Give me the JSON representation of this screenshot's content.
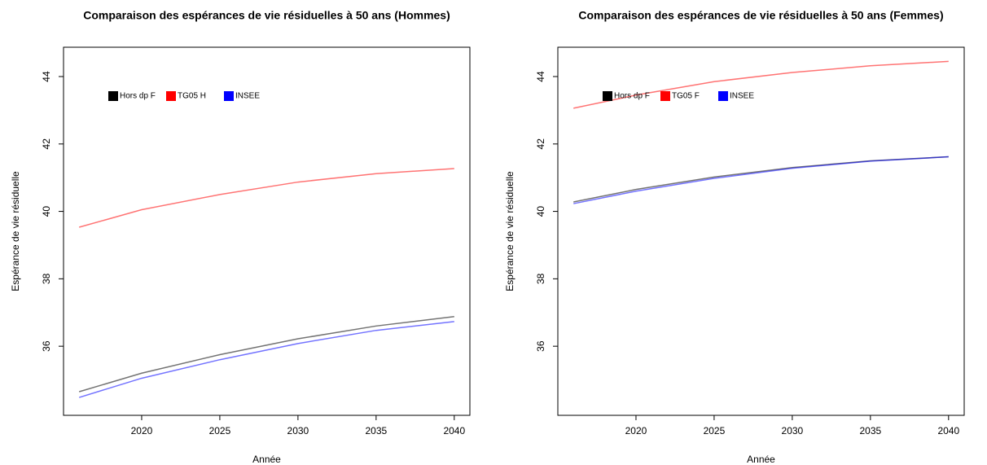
{
  "chart_data": [
    {
      "type": "line",
      "title": "Comparaison des espérances de vie résiduelles à 50 ans (Hommes)",
      "x_label": "Année",
      "y_label": "Espérance de vie résiduelle",
      "x": [
        2016,
        2020,
        2025,
        2030,
        2035,
        2040
      ],
      "series": [
        {
          "name": "Hors dp F",
          "color": "#000000",
          "values": [
            34.65,
            35.2,
            35.75,
            36.22,
            36.6,
            36.88
          ]
        },
        {
          "name": "TG05 H",
          "color": "#ff0000",
          "values": [
            39.53,
            40.05,
            40.5,
            40.87,
            41.12,
            41.27
          ]
        },
        {
          "name": "INSEE",
          "color": "#0000ff",
          "values": [
            34.48,
            35.05,
            35.6,
            36.08,
            36.47,
            36.73
          ]
        }
      ],
      "xlim": [
        2015,
        2041
      ],
      "ylim": [
        33.95,
        44.87
      ],
      "xticks": [
        2020,
        2025,
        2030,
        2035,
        2040
      ],
      "yticks": [
        36,
        38,
        40,
        42,
        44
      ],
      "legend": "top-left"
    },
    {
      "type": "line",
      "title": "Comparaison des espérances de vie résiduelles à 50 ans (Femmes)",
      "x_label": "Année",
      "y_label": "Espérance de vie résiduelle",
      "x": [
        2016,
        2020,
        2025,
        2030,
        2035,
        2040
      ],
      "series": [
        {
          "name": "Hors dp F",
          "color": "#000000",
          "values": [
            40.28,
            40.65,
            41.02,
            41.3,
            41.5,
            41.62
          ]
        },
        {
          "name": "TG05 F",
          "color": "#ff0000",
          "values": [
            43.06,
            43.45,
            43.85,
            44.12,
            44.32,
            44.45
          ]
        },
        {
          "name": "INSEE",
          "color": "#0000ff",
          "values": [
            40.23,
            40.6,
            40.98,
            41.28,
            41.49,
            41.62
          ]
        }
      ],
      "xlim": [
        2015,
        2041
      ],
      "ylim": [
        33.95,
        44.87
      ],
      "xticks": [
        2020,
        2025,
        2030,
        2035,
        2040
      ],
      "yticks": [
        36,
        38,
        40,
        42,
        44
      ],
      "legend": "top-left"
    }
  ]
}
